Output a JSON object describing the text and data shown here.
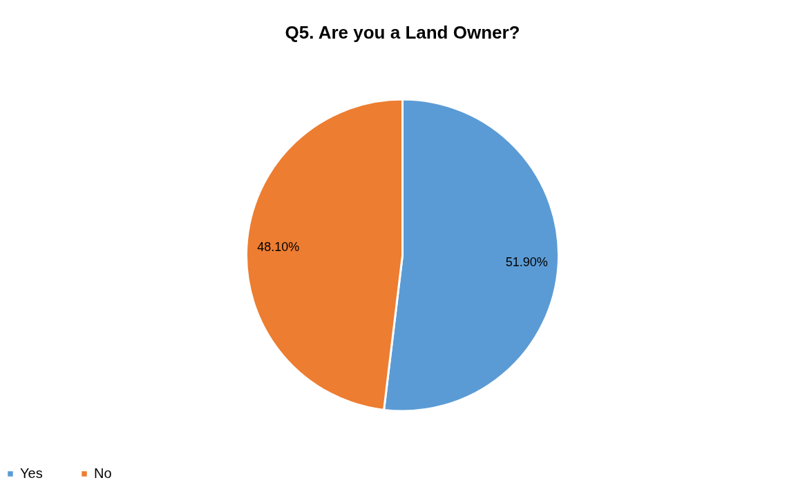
{
  "chart_data": {
    "type": "pie",
    "title": "Q5. Are you a Land Owner?",
    "categories": [
      "Yes",
      "No"
    ],
    "values": [
      51.9,
      48.1
    ],
    "colors": [
      "#5b9bd5",
      "#ed7d31"
    ],
    "value_labels": [
      "51.90%",
      "48.10%"
    ],
    "legend": "bottom"
  }
}
